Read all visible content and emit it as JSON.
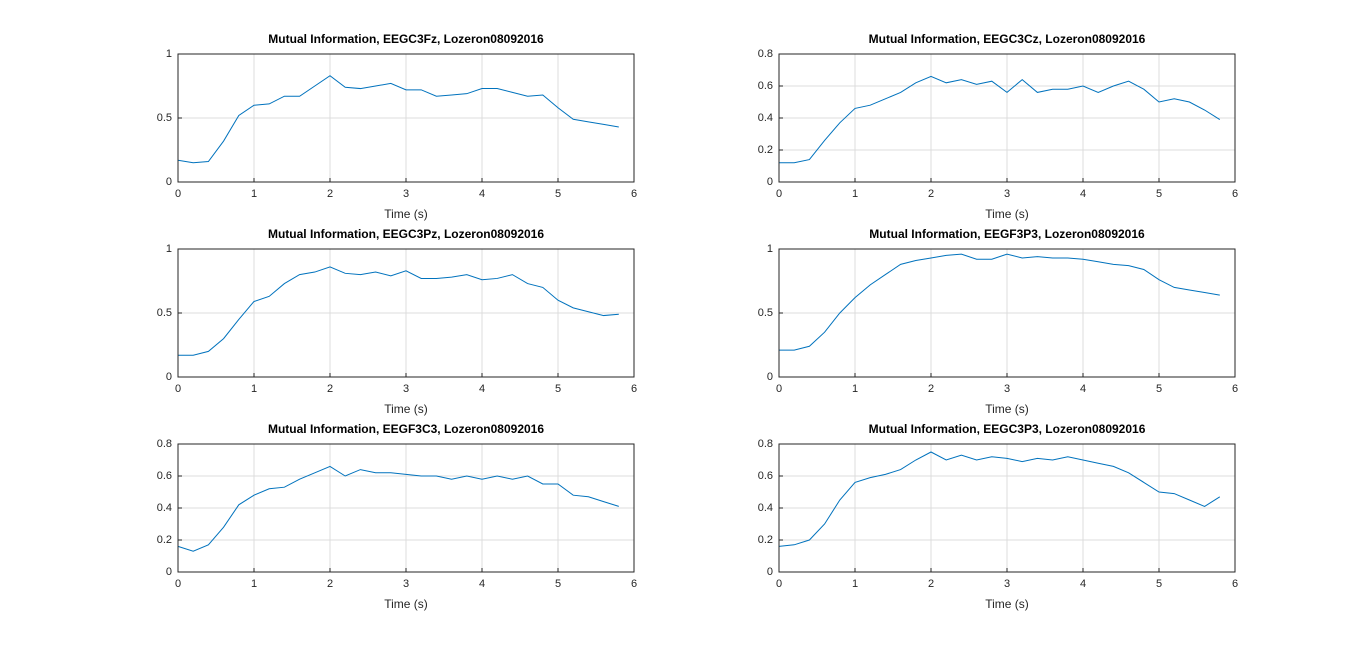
{
  "chart_data": [
    {
      "type": "line",
      "title": "Mutual Information, EEGC3Fz, Lozeron08092016",
      "xlabel": "Time (s)",
      "grid": true,
      "xlim": [
        0,
        6
      ],
      "xticks": [
        0,
        1,
        2,
        3,
        4,
        5,
        6
      ],
      "ylim": [
        0,
        1
      ],
      "yticks": [
        0,
        0.5,
        1
      ],
      "x": [
        0,
        0.2,
        0.4,
        0.6,
        0.8,
        1,
        1.2,
        1.4,
        1.6,
        1.8,
        2,
        2.2,
        2.4,
        2.6,
        2.8,
        3,
        3.2,
        3.4,
        3.6,
        3.8,
        4,
        4.2,
        4.4,
        4.6,
        4.8,
        5,
        5.2,
        5.4,
        5.6,
        5.8
      ],
      "series": [
        {
          "color": "#0072bd",
          "values": [
            0.17,
            0.15,
            0.16,
            0.32,
            0.52,
            0.6,
            0.61,
            0.67,
            0.67,
            0.75,
            0.83,
            0.74,
            0.73,
            0.75,
            0.77,
            0.72,
            0.72,
            0.67,
            0.68,
            0.69,
            0.73,
            0.73,
            0.7,
            0.67,
            0.68,
            0.58,
            0.49,
            0.47,
            0.45,
            0.43
          ]
        }
      ]
    },
    {
      "type": "line",
      "title": "Mutual Information, EEGC3Cz, Lozeron08092016",
      "xlabel": "Time (s)",
      "grid": true,
      "xlim": [
        0,
        6
      ],
      "xticks": [
        0,
        1,
        2,
        3,
        4,
        5,
        6
      ],
      "ylim": [
        0,
        0.8
      ],
      "yticks": [
        0,
        0.2,
        0.4,
        0.6,
        0.8
      ],
      "x": [
        0,
        0.2,
        0.4,
        0.6,
        0.8,
        1,
        1.2,
        1.4,
        1.6,
        1.8,
        2,
        2.2,
        2.4,
        2.6,
        2.8,
        3,
        3.2,
        3.4,
        3.6,
        3.8,
        4,
        4.2,
        4.4,
        4.6,
        4.8,
        5,
        5.2,
        5.4,
        5.6,
        5.8
      ],
      "series": [
        {
          "color": "#0072bd",
          "values": [
            0.12,
            0.12,
            0.14,
            0.26,
            0.37,
            0.46,
            0.48,
            0.52,
            0.56,
            0.62,
            0.66,
            0.62,
            0.64,
            0.61,
            0.63,
            0.56,
            0.64,
            0.56,
            0.58,
            0.58,
            0.6,
            0.56,
            0.6,
            0.63,
            0.58,
            0.5,
            0.52,
            0.5,
            0.45,
            0.39
          ]
        }
      ]
    },
    {
      "type": "line",
      "title": "Mutual Information, EEGC3Pz, Lozeron08092016",
      "xlabel": "Time (s)",
      "grid": true,
      "xlim": [
        0,
        6
      ],
      "xticks": [
        0,
        1,
        2,
        3,
        4,
        5,
        6
      ],
      "ylim": [
        0,
        1
      ],
      "yticks": [
        0,
        0.5,
        1
      ],
      "x": [
        0,
        0.2,
        0.4,
        0.6,
        0.8,
        1,
        1.2,
        1.4,
        1.6,
        1.8,
        2,
        2.2,
        2.4,
        2.6,
        2.8,
        3,
        3.2,
        3.4,
        3.6,
        3.8,
        4,
        4.2,
        4.4,
        4.6,
        4.8,
        5,
        5.2,
        5.4,
        5.6,
        5.8
      ],
      "series": [
        {
          "color": "#0072bd",
          "values": [
            0.17,
            0.17,
            0.2,
            0.3,
            0.45,
            0.59,
            0.63,
            0.73,
            0.8,
            0.82,
            0.86,
            0.81,
            0.8,
            0.82,
            0.79,
            0.83,
            0.77,
            0.77,
            0.78,
            0.8,
            0.76,
            0.77,
            0.8,
            0.73,
            0.7,
            0.6,
            0.54,
            0.51,
            0.48,
            0.49
          ]
        }
      ]
    },
    {
      "type": "line",
      "title": "Mutual Information, EEGF3P3, Lozeron08092016",
      "xlabel": "Time (s)",
      "grid": true,
      "xlim": [
        0,
        6
      ],
      "xticks": [
        0,
        1,
        2,
        3,
        4,
        5,
        6
      ],
      "ylim": [
        0,
        1
      ],
      "yticks": [
        0,
        0.5,
        1
      ],
      "x": [
        0,
        0.2,
        0.4,
        0.6,
        0.8,
        1,
        1.2,
        1.4,
        1.6,
        1.8,
        2,
        2.2,
        2.4,
        2.6,
        2.8,
        3,
        3.2,
        3.4,
        3.6,
        3.8,
        4,
        4.2,
        4.4,
        4.6,
        4.8,
        5,
        5.2,
        5.4,
        5.6,
        5.8
      ],
      "series": [
        {
          "color": "#0072bd",
          "values": [
            0.21,
            0.21,
            0.24,
            0.35,
            0.5,
            0.62,
            0.72,
            0.8,
            0.88,
            0.91,
            0.93,
            0.95,
            0.96,
            0.92,
            0.92,
            0.96,
            0.93,
            0.94,
            0.93,
            0.93,
            0.92,
            0.9,
            0.88,
            0.87,
            0.84,
            0.76,
            0.7,
            0.68,
            0.66,
            0.64
          ]
        }
      ]
    },
    {
      "type": "line",
      "title": "Mutual Information, EEGF3C3, Lozeron08092016",
      "xlabel": "Time (s)",
      "grid": true,
      "xlim": [
        0,
        6
      ],
      "xticks": [
        0,
        1,
        2,
        3,
        4,
        5,
        6
      ],
      "ylim": [
        0,
        0.8
      ],
      "yticks": [
        0,
        0.2,
        0.4,
        0.6,
        0.8
      ],
      "x": [
        0,
        0.2,
        0.4,
        0.6,
        0.8,
        1,
        1.2,
        1.4,
        1.6,
        1.8,
        2,
        2.2,
        2.4,
        2.6,
        2.8,
        3,
        3.2,
        3.4,
        3.6,
        3.8,
        4,
        4.2,
        4.4,
        4.6,
        4.8,
        5,
        5.2,
        5.4,
        5.6,
        5.8
      ],
      "series": [
        {
          "color": "#0072bd",
          "values": [
            0.16,
            0.13,
            0.17,
            0.28,
            0.42,
            0.48,
            0.52,
            0.53,
            0.58,
            0.62,
            0.66,
            0.6,
            0.64,
            0.62,
            0.62,
            0.61,
            0.6,
            0.6,
            0.58,
            0.6,
            0.58,
            0.6,
            0.58,
            0.6,
            0.55,
            0.55,
            0.48,
            0.47,
            0.44,
            0.41
          ]
        }
      ]
    },
    {
      "type": "line",
      "title": "Mutual Information, EEGC3P3, Lozeron08092016",
      "xlabel": "Time (s)",
      "grid": true,
      "xlim": [
        0,
        6
      ],
      "xticks": [
        0,
        1,
        2,
        3,
        4,
        5,
        6
      ],
      "ylim": [
        0,
        0.8
      ],
      "yticks": [
        0,
        0.2,
        0.4,
        0.6,
        0.8
      ],
      "x": [
        0,
        0.2,
        0.4,
        0.6,
        0.8,
        1,
        1.2,
        1.4,
        1.6,
        1.8,
        2,
        2.2,
        2.4,
        2.6,
        2.8,
        3,
        3.2,
        3.4,
        3.6,
        3.8,
        4,
        4.2,
        4.4,
        4.6,
        4.8,
        5,
        5.2,
        5.4,
        5.6,
        5.8
      ],
      "series": [
        {
          "color": "#0072bd",
          "values": [
            0.16,
            0.17,
            0.2,
            0.3,
            0.45,
            0.56,
            0.59,
            0.61,
            0.64,
            0.7,
            0.75,
            0.7,
            0.73,
            0.7,
            0.72,
            0.71,
            0.69,
            0.71,
            0.7,
            0.72,
            0.7,
            0.68,
            0.66,
            0.62,
            0.56,
            0.5,
            0.49,
            0.45,
            0.41,
            0.47
          ]
        }
      ]
    }
  ]
}
